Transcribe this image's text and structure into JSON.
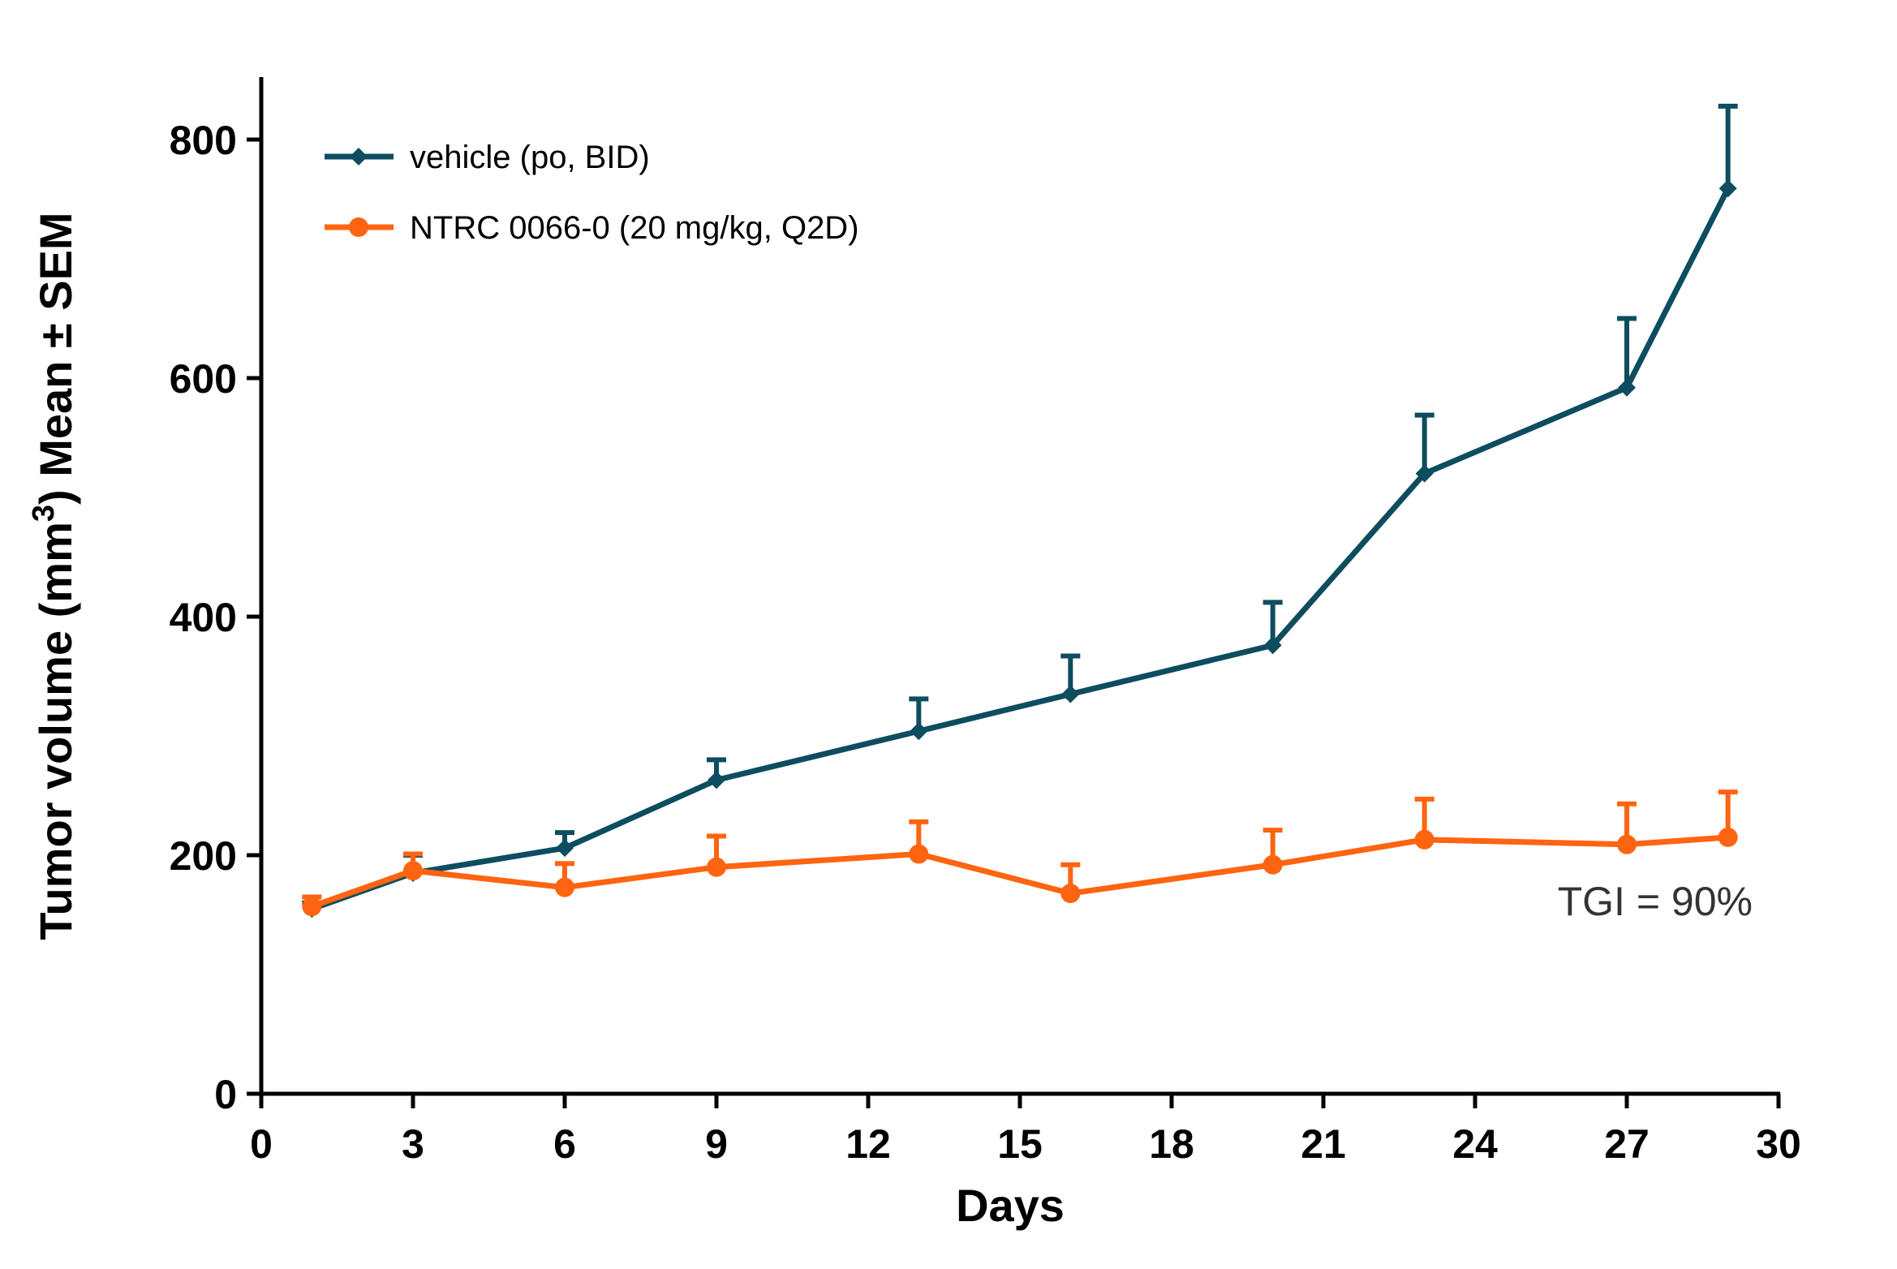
{
  "chart_data": {
    "type": "line",
    "xlabel": "Days",
    "ylabel": {
      "prefix": "Tumor volume (mm",
      "sup": "3",
      "suffix": ") Mean ± SEM"
    },
    "xlim": [
      0,
      30
    ],
    "ylim": [
      0,
      850
    ],
    "xticks": [
      0,
      3,
      6,
      9,
      12,
      15,
      18,
      21,
      24,
      27,
      30
    ],
    "yticks": [
      0,
      200,
      400,
      600,
      800
    ],
    "grid": false,
    "legend_position": "top-left",
    "annotation": "TGI = 90%",
    "series": [
      {
        "name": "vehicle (po, BID)",
        "color": "#0d4d5f",
        "marker": "diamond",
        "x": [
          1,
          3,
          6,
          9,
          13,
          16,
          20,
          23,
          27,
          29
        ],
        "y": [
          155,
          185,
          206,
          263,
          304,
          335,
          376,
          520,
          592,
          759
        ],
        "error": [
          5,
          15,
          13,
          17,
          27,
          32,
          36,
          49,
          58,
          69
        ]
      },
      {
        "name": "NTRC 0066-0 (20 mg/kg, Q2D)",
        "color": "#ff6410",
        "marker": "circle",
        "x": [
          1,
          3,
          6,
          9,
          13,
          16,
          20,
          23,
          27,
          29
        ],
        "y": [
          157,
          187,
          173,
          190,
          201,
          168,
          192,
          213,
          209,
          215
        ],
        "error": [
          8,
          14,
          20,
          26,
          27,
          24,
          29,
          34,
          34,
          38
        ]
      }
    ]
  }
}
